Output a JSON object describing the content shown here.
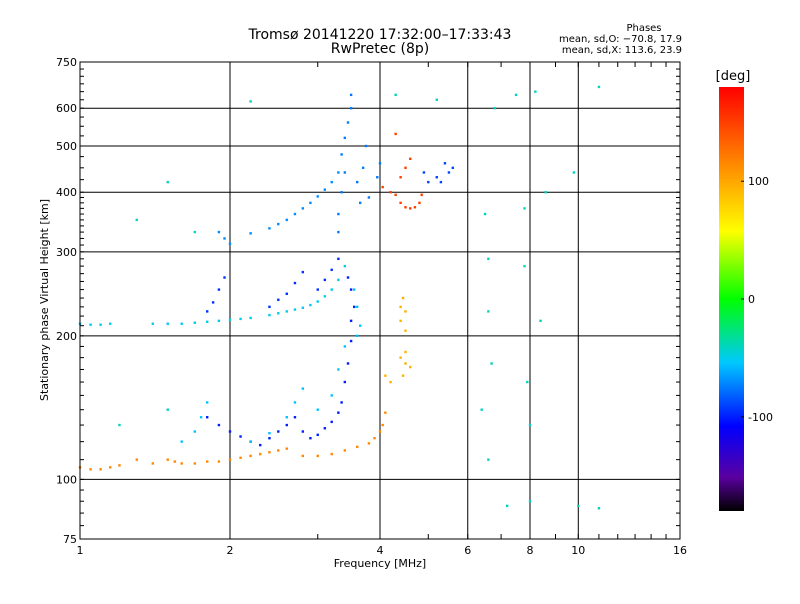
{
  "chart_data": {
    "type": "scatter",
    "title": "Tromsø 20141220 17:32:00–17:33:43",
    "subtitle": "RwPretec (8p)",
    "xlabel": "Frequency [MHz]",
    "ylabel": "Stationary phase Virtual Height [km]",
    "x_scale": "log",
    "y_scale": "log",
    "xlim": [
      1,
      16
    ],
    "ylim": [
      75,
      750
    ],
    "x_ticks": [
      1,
      2,
      4,
      6,
      8,
      10,
      16
    ],
    "y_ticks": [
      75,
      100,
      200,
      300,
      400,
      500,
      600,
      750
    ],
    "x_gridlines": [
      2,
      4,
      6,
      8,
      10
    ],
    "y_gridlines": [
      100,
      200,
      300,
      400,
      500,
      600
    ],
    "grid": true,
    "phases": {
      "heading": "Phases",
      "line_o": "mean, sd,O: −70.8, 17.9",
      "line_x": "mean, sd,X: 113.6, 23.9"
    },
    "colorbar": {
      "label": "[deg]",
      "range": [
        -180,
        180
      ],
      "ticks": [
        100,
        0,
        -100
      ],
      "colormap": "rainbow",
      "placement": "right"
    },
    "series": [
      {
        "points": [
          [
            1.0,
            106
          ],
          [
            1.05,
            105
          ],
          [
            1.1,
            105
          ],
          [
            1.15,
            106
          ],
          [
            1.2,
            107
          ],
          [
            1.3,
            110
          ],
          [
            1.4,
            108
          ],
          [
            1.5,
            110
          ],
          [
            1.55,
            109
          ],
          [
            1.6,
            108
          ],
          [
            1.7,
            108
          ],
          [
            1.8,
            109
          ],
          [
            1.9,
            109
          ],
          [
            2.0,
            110
          ],
          [
            2.1,
            111
          ],
          [
            2.2,
            112
          ],
          [
            2.3,
            113
          ],
          [
            2.4,
            114
          ],
          [
            2.5,
            115
          ],
          [
            2.6,
            116
          ],
          [
            2.8,
            112
          ],
          [
            3.0,
            112
          ],
          [
            3.2,
            113
          ],
          [
            3.4,
            115
          ],
          [
            3.6,
            117
          ],
          [
            3.8,
            119
          ],
          [
            3.9,
            122
          ],
          [
            4.0,
            126
          ],
          [
            4.05,
            130
          ],
          [
            4.1,
            138
          ]
        ],
        "phase": 115
      },
      {
        "points": [
          [
            1.8,
            135
          ],
          [
            1.9,
            130
          ],
          [
            2.0,
            126
          ],
          [
            2.1,
            123
          ],
          [
            2.2,
            120
          ],
          [
            2.3,
            118
          ],
          [
            2.4,
            122
          ],
          [
            2.5,
            126
          ],
          [
            2.6,
            130
          ],
          [
            2.7,
            135
          ],
          [
            2.8,
            126
          ],
          [
            2.9,
            122
          ],
          [
            3.0,
            124
          ],
          [
            3.1,
            128
          ],
          [
            3.2,
            132
          ],
          [
            3.3,
            138
          ],
          [
            3.35,
            145
          ],
          [
            3.4,
            160
          ],
          [
            3.45,
            175
          ],
          [
            3.5,
            195
          ],
          [
            3.5,
            215
          ],
          [
            3.55,
            230
          ],
          [
            3.5,
            250
          ],
          [
            3.45,
            265
          ]
        ],
        "phase": -100
      },
      {
        "points": [
          [
            1.6,
            120
          ],
          [
            1.7,
            126
          ],
          [
            1.75,
            135
          ],
          [
            1.8,
            145
          ],
          [
            2.2,
            120
          ],
          [
            2.4,
            125
          ],
          [
            2.6,
            135
          ],
          [
            2.7,
            145
          ],
          [
            2.8,
            155
          ],
          [
            3.0,
            140
          ],
          [
            3.2,
            150
          ],
          [
            3.3,
            170
          ],
          [
            3.4,
            190
          ],
          [
            3.6,
            200
          ],
          [
            3.65,
            210
          ],
          [
            3.6,
            230
          ],
          [
            3.55,
            250
          ]
        ],
        "phase": -55
      },
      {
        "points": [
          [
            1.0,
            212
          ],
          [
            1.05,
            211
          ],
          [
            1.1,
            211
          ],
          [
            1.15,
            212
          ],
          [
            1.4,
            212
          ],
          [
            1.5,
            212
          ],
          [
            1.6,
            212
          ],
          [
            1.7,
            213
          ],
          [
            1.8,
            214
          ],
          [
            1.9,
            215
          ],
          [
            2.0,
            216
          ],
          [
            2.1,
            217
          ],
          [
            2.2,
            218
          ],
          [
            2.4,
            221
          ],
          [
            2.5,
            223
          ],
          [
            2.6,
            225
          ],
          [
            2.7,
            227
          ],
          [
            2.8,
            229
          ],
          [
            2.9,
            232
          ],
          [
            3.0,
            236
          ],
          [
            3.1,
            242
          ],
          [
            3.2,
            250
          ],
          [
            3.3,
            262
          ],
          [
            3.4,
            280
          ]
        ],
        "phase": -50
      },
      {
        "points": [
          [
            1.8,
            225
          ],
          [
            1.85,
            235
          ],
          [
            1.9,
            250
          ],
          [
            1.95,
            265
          ],
          [
            2.4,
            230
          ],
          [
            2.5,
            238
          ],
          [
            2.6,
            245
          ],
          [
            2.7,
            258
          ],
          [
            2.8,
            272
          ],
          [
            3.0,
            250
          ],
          [
            3.1,
            262
          ],
          [
            3.2,
            275
          ],
          [
            3.3,
            290
          ]
        ],
        "phase": -95
      },
      {
        "points": [
          [
            1.9,
            330
          ],
          [
            1.95,
            320
          ],
          [
            2.0,
            312
          ],
          [
            2.2,
            328
          ],
          [
            2.4,
            336
          ],
          [
            2.5,
            343
          ],
          [
            2.6,
            350
          ],
          [
            2.7,
            360
          ],
          [
            2.8,
            370
          ],
          [
            2.9,
            380
          ],
          [
            3.0,
            392
          ],
          [
            3.1,
            405
          ],
          [
            3.2,
            420
          ],
          [
            3.3,
            440
          ]
        ],
        "phase": -70
      },
      {
        "points": [
          [
            3.3,
            330
          ],
          [
            3.3,
            360
          ],
          [
            3.35,
            400
          ],
          [
            3.4,
            440
          ],
          [
            3.35,
            480
          ],
          [
            3.4,
            520
          ],
          [
            3.45,
            560
          ],
          [
            3.5,
            600
          ],
          [
            3.5,
            640
          ],
          [
            3.6,
            420
          ],
          [
            3.65,
            380
          ],
          [
            3.7,
            450
          ],
          [
            3.75,
            500
          ],
          [
            3.8,
            390
          ],
          [
            3.95,
            430
          ],
          [
            4.0,
            460
          ]
        ],
        "phase": -75
      },
      {
        "points": [
          [
            4.05,
            410
          ],
          [
            4.2,
            400
          ],
          [
            4.3,
            395
          ],
          [
            4.4,
            380
          ],
          [
            4.5,
            372
          ],
          [
            4.6,
            370
          ],
          [
            4.7,
            372
          ],
          [
            4.8,
            380
          ],
          [
            4.85,
            395
          ],
          [
            4.4,
            430
          ],
          [
            4.5,
            450
          ],
          [
            4.6,
            470
          ],
          [
            4.3,
            530
          ]
        ],
        "phase": 150
      },
      {
        "points": [
          [
            4.4,
            230
          ],
          [
            4.45,
            240
          ],
          [
            4.5,
            225
          ],
          [
            4.4,
            215
          ],
          [
            4.5,
            205
          ],
          [
            4.4,
            180
          ],
          [
            4.5,
            175
          ],
          [
            4.6,
            172
          ],
          [
            4.45,
            165
          ],
          [
            4.1,
            165
          ],
          [
            4.2,
            160
          ],
          [
            4.5,
            185
          ]
        ],
        "phase": 95
      },
      {
        "points": [
          [
            5.2,
            430
          ],
          [
            5.4,
            460
          ],
          [
            5.6,
            450
          ],
          [
            5.5,
            440
          ],
          [
            5.3,
            420
          ],
          [
            4.9,
            440
          ],
          [
            5.0,
            420
          ]
        ],
        "phase": -90
      },
      {
        "points": [
          [
            2.2,
            620
          ],
          [
            4.3,
            640
          ],
          [
            5.2,
            625
          ],
          [
            6.8,
            600
          ],
          [
            7.5,
            640
          ],
          [
            8.2,
            650
          ],
          [
            11.0,
            665
          ],
          [
            6.5,
            360
          ],
          [
            6.6,
            290
          ],
          [
            6.4,
            140
          ],
          [
            6.6,
            110
          ],
          [
            7.2,
            88
          ],
          [
            8.0,
            90
          ],
          [
            10.0,
            88
          ],
          [
            11.0,
            87
          ],
          [
            8.6,
            400
          ],
          [
            9.8,
            440
          ],
          [
            7.8,
            370
          ],
          [
            7.8,
            280
          ],
          [
            7.9,
            160
          ],
          [
            8.0,
            130
          ],
          [
            6.6,
            225
          ],
          [
            6.7,
            175
          ],
          [
            8.4,
            215
          ],
          [
            1.3,
            350
          ],
          [
            1.5,
            420
          ],
          [
            1.7,
            330
          ],
          [
            1.2,
            130
          ],
          [
            1.5,
            140
          ]
        ],
        "phase": -40
      }
    ]
  }
}
